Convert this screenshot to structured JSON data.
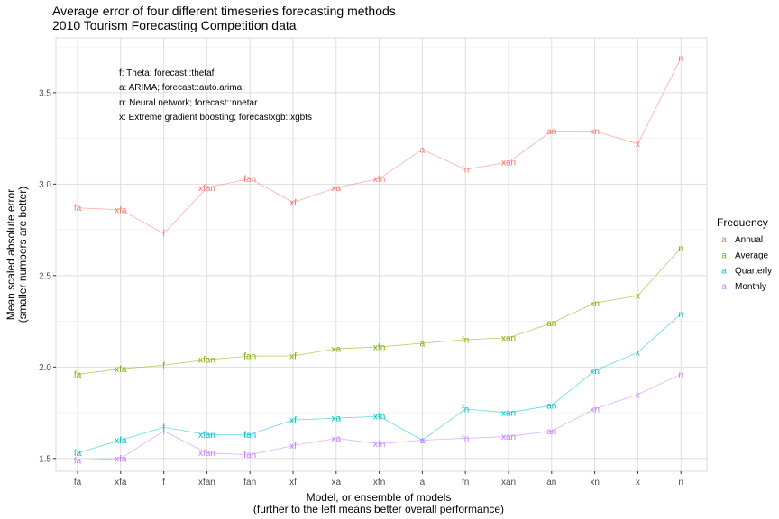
{
  "chart_data": {
    "type": "line",
    "title": "Average error of four different timeseries forecasting methods",
    "subtitle": "2010 Tourism Forecasting Competition data",
    "xlabel": "Model, or ensemble of models",
    "xlabel_sub": "(further to the left means better overall performance)",
    "ylabel": "Mean scaled absolute error",
    "ylabel_sub": "(smaller numbers are better)",
    "ylim": [
      1.43,
      3.8
    ],
    "yticks": [
      1.5,
      2.0,
      2.5,
      3.0,
      3.5
    ],
    "ytick_labels": [
      "1.5",
      "2.0",
      "2.5",
      "3.0",
      "3.5"
    ],
    "grid": true,
    "legend_position": "right",
    "legend_title": "Frequency",
    "legend_marker": "a",
    "categories": [
      "fa",
      "xfa",
      "f",
      "xfan",
      "fan",
      "xf",
      "xa",
      "xfn",
      "a",
      "fn",
      "xan",
      "an",
      "xn",
      "x",
      "n"
    ],
    "notes": [
      "f: Theta; forecast::thetaf",
      "a: ARIMA; forecast::auto.arima",
      "n: Neural network; forecast::nnetar",
      "x: Extreme gradient boosting; forecastxgb::xgbts"
    ],
    "series": [
      {
        "name": "Annual",
        "color": "#f8766d",
        "values": [
          2.87,
          2.86,
          2.73,
          2.98,
          3.03,
          2.9,
          2.98,
          3.03,
          3.19,
          3.08,
          3.12,
          3.29,
          3.29,
          3.22,
          3.69
        ]
      },
      {
        "name": "Average",
        "color": "#7cae00",
        "values": [
          1.96,
          1.99,
          2.01,
          2.04,
          2.06,
          2.06,
          2.1,
          2.11,
          2.13,
          2.15,
          2.16,
          2.24,
          2.35,
          2.39,
          2.65
        ]
      },
      {
        "name": "Quarterly",
        "color": "#00bfc4",
        "values": [
          1.53,
          1.6,
          1.67,
          1.63,
          1.63,
          1.71,
          1.72,
          1.73,
          1.6,
          1.77,
          1.75,
          1.79,
          1.98,
          2.08,
          2.29
        ]
      },
      {
        "name": "Monthly",
        "color": "#c77cff",
        "values": [
          1.49,
          1.5,
          1.65,
          1.53,
          1.52,
          1.57,
          1.61,
          1.58,
          1.6,
          1.61,
          1.62,
          1.65,
          1.77,
          1.85,
          1.96
        ]
      }
    ]
  }
}
